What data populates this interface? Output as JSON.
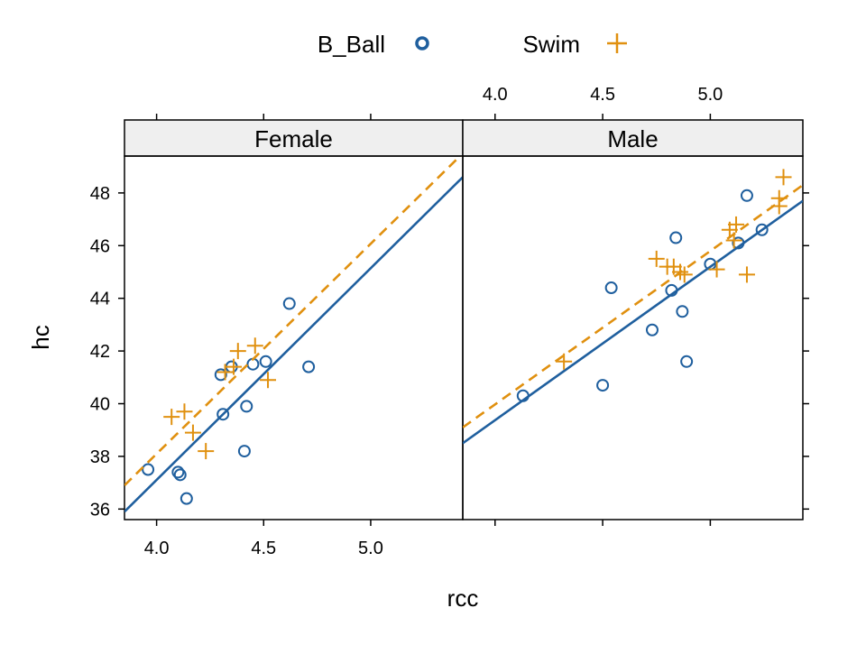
{
  "chart_data": {
    "type": "scatter",
    "layout": "lattice panels by sex, shared axes",
    "xlabel": "rcc",
    "ylabel": "hc",
    "xlim": [
      3.85,
      5.43
    ],
    "ylim": [
      35.6,
      49.4
    ],
    "x_ticks": [
      4.0,
      4.5,
      5.0
    ],
    "x_tick_labels": [
      "4.0",
      "4.5",
      "5.0"
    ],
    "y_ticks": [
      36,
      38,
      40,
      42,
      44,
      46,
      48
    ],
    "y_tick_labels": [
      "36",
      "38",
      "40",
      "42",
      "44",
      "46",
      "48"
    ],
    "grid": false,
    "legend_position": "top",
    "legend": [
      {
        "label": "B_Ball",
        "symbol": "circle",
        "color": "#1f5f9e"
      },
      {
        "label": "Swim",
        "symbol": "plus",
        "color": "#e0900f"
      }
    ],
    "panels": [
      {
        "strip": "Female",
        "series": [
          {
            "name": "B_Ball",
            "points": [
              [
                3.96,
                37.5
              ],
              [
                4.1,
                37.4
              ],
              [
                4.11,
                37.3
              ],
              [
                4.14,
                36.4
              ],
              [
                4.3,
                41.1
              ],
              [
                4.31,
                39.6
              ],
              [
                4.35,
                41.4
              ],
              [
                4.41,
                38.2
              ],
              [
                4.42,
                39.9
              ],
              [
                4.45,
                41.5
              ],
              [
                4.51,
                41.6
              ],
              [
                4.62,
                43.8
              ],
              [
                4.71,
                41.4
              ]
            ],
            "fit_line": [
              [
                3.85,
                35.9
              ],
              [
                5.43,
                48.6
              ]
            ]
          },
          {
            "name": "Swim",
            "points": [
              [
                4.07,
                39.5
              ],
              [
                4.13,
                39.7
              ],
              [
                4.17,
                38.9
              ],
              [
                4.23,
                38.2
              ],
              [
                4.32,
                41.2
              ],
              [
                4.36,
                41.4
              ],
              [
                4.38,
                42.0
              ],
              [
                4.46,
                42.2
              ],
              [
                4.52,
                40.9
              ]
            ],
            "fit_line": [
              [
                3.85,
                36.9
              ],
              [
                5.43,
                49.5
              ]
            ]
          }
        ]
      },
      {
        "strip": "Male",
        "series": [
          {
            "name": "B_Ball",
            "points": [
              [
                4.13,
                40.3
              ],
              [
                4.5,
                40.7
              ],
              [
                4.54,
                44.4
              ],
              [
                4.73,
                42.8
              ],
              [
                4.82,
                44.3
              ],
              [
                4.84,
                46.3
              ],
              [
                4.87,
                43.5
              ],
              [
                4.89,
                41.6
              ],
              [
                5.0,
                45.3
              ],
              [
                5.13,
                46.1
              ],
              [
                5.17,
                47.9
              ],
              [
                5.24,
                46.6
              ]
            ],
            "fit_line": [
              [
                3.85,
                38.5
              ],
              [
                5.43,
                47.7
              ]
            ]
          },
          {
            "name": "Swim",
            "points": [
              [
                4.32,
                41.6
              ],
              [
                4.75,
                45.5
              ],
              [
                4.8,
                45.2
              ],
              [
                4.83,
                45.2
              ],
              [
                4.86,
                45.0
              ],
              [
                4.88,
                44.9
              ],
              [
                5.03,
                45.1
              ],
              [
                5.09,
                46.6
              ],
              [
                5.11,
                46.2
              ],
              [
                5.12,
                46.8
              ],
              [
                5.17,
                44.9
              ],
              [
                5.32,
                47.5
              ],
              [
                5.32,
                47.8
              ],
              [
                5.34,
                48.6
              ]
            ],
            "fit_line": [
              [
                3.85,
                39.1
              ],
              [
                5.43,
                48.3
              ]
            ]
          }
        ]
      }
    ]
  }
}
